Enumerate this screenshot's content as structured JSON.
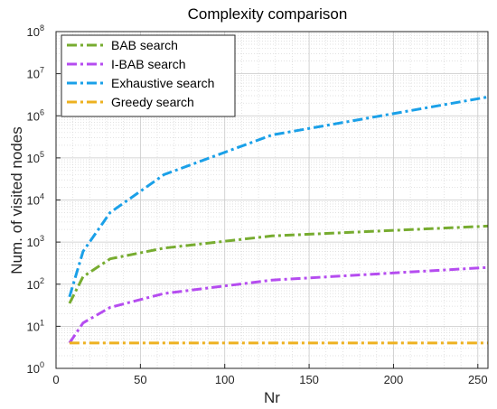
{
  "chart_data": {
    "type": "line",
    "title": "Complexity comparison",
    "xlabel": "Nr",
    "ylabel": "Num. of visited nodes",
    "xlim": [
      0,
      256
    ],
    "ylim_log10": [
      0,
      8
    ],
    "y_scale": "log",
    "grid": true,
    "minor_grid": true,
    "legend_position": "top-left",
    "x_ticks": [
      0,
      50,
      100,
      150,
      200,
      250
    ],
    "x_tick_labels": [
      "0",
      "50",
      "100",
      "150",
      "200",
      "250"
    ],
    "y_tick_exponents": [
      0,
      1,
      2,
      3,
      4,
      5,
      6,
      7,
      8
    ],
    "y_tick_base": "10",
    "x": [
      8,
      16,
      32,
      64,
      128,
      256
    ],
    "series": [
      {
        "name": "BAB search",
        "color": "#77ac30",
        "values": [
          35,
          150,
          400,
          720,
          1400,
          2400
        ]
      },
      {
        "name": "I-BAB search",
        "color": "#b54cf0",
        "values": [
          4,
          12,
          28,
          60,
          125,
          250
        ]
      },
      {
        "name": "Exhaustive search",
        "color": "#1aa0e8",
        "values": [
          50,
          600,
          5000,
          40000,
          350000,
          2800000
        ]
      },
      {
        "name": "Greedy search",
        "color": "#edb120",
        "values": [
          4,
          4,
          4,
          4,
          4,
          4
        ]
      }
    ]
  }
}
